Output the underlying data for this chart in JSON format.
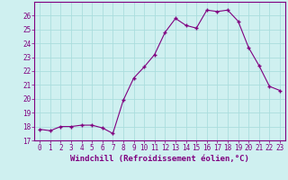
{
  "x": [
    0,
    1,
    2,
    3,
    4,
    5,
    6,
    7,
    8,
    9,
    10,
    11,
    12,
    13,
    14,
    15,
    16,
    17,
    18,
    19,
    20,
    21,
    22,
    23
  ],
  "y": [
    17.8,
    17.7,
    18.0,
    18.0,
    18.1,
    18.1,
    17.9,
    17.5,
    19.9,
    21.5,
    22.3,
    23.2,
    24.8,
    25.8,
    25.3,
    25.1,
    26.4,
    26.3,
    26.4,
    25.6,
    23.7,
    22.4,
    20.9,
    20.6
  ],
  "xlabel": "Windchill (Refroidissement éolien,°C)",
  "ylim": [
    17,
    27
  ],
  "xlim": [
    -0.5,
    23.5
  ],
  "yticks": [
    17,
    18,
    19,
    20,
    21,
    22,
    23,
    24,
    25,
    26
  ],
  "xticks": [
    0,
    1,
    2,
    3,
    4,
    5,
    6,
    7,
    8,
    9,
    10,
    11,
    12,
    13,
    14,
    15,
    16,
    17,
    18,
    19,
    20,
    21,
    22,
    23
  ],
  "line_color": "#800080",
  "marker": "+",
  "bg_color": "#cff0f0",
  "grid_color": "#aadddd",
  "axis_color": "#800080",
  "tick_color": "#800080",
  "xlabel_color": "#800080",
  "tick_fontsize": 5.5,
  "xlabel_fontsize": 6.5
}
